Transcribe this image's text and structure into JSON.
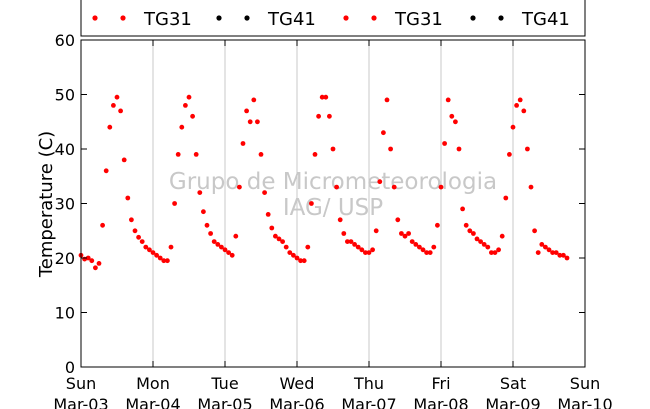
{
  "chart_data": {
    "type": "scatter",
    "ylabel": "Temperature (C)",
    "ylim": [
      0,
      60
    ],
    "yticks": [
      0,
      10,
      20,
      30,
      40,
      50,
      60
    ],
    "xlim": [
      0,
      7
    ],
    "xticks": [
      {
        "day": "Sun",
        "date": "Mar-03"
      },
      {
        "day": "Mon",
        "date": "Mar-04"
      },
      {
        "day": "Tue",
        "date": "Mar-05"
      },
      {
        "day": "Wed",
        "date": "Mar-06"
      },
      {
        "day": "Thu",
        "date": "Mar-07"
      },
      {
        "day": "Fri",
        "date": "Mar-08"
      },
      {
        "day": "Sat",
        "date": "Mar-09"
      },
      {
        "day": "Sun",
        "date": "Mar-10"
      }
    ],
    "grid": "vertical",
    "legend_position": "top",
    "legend": [
      {
        "name": "TG31",
        "color": "#ff0000"
      },
      {
        "name": "TG41",
        "color": "#000000"
      },
      {
        "name": "TG31",
        "color": "#ff0000"
      },
      {
        "name": "TG41",
        "color": "#000000"
      }
    ],
    "watermark": [
      "Grupo de Micrometeorologia",
      "IAG/ USP"
    ],
    "series": [
      {
        "name": "TG31",
        "color": "#ff0000",
        "points": [
          [
            0.0,
            20.5
          ],
          [
            0.05,
            19.8
          ],
          [
            0.1,
            20.0
          ],
          [
            0.15,
            19.5
          ],
          [
            0.2,
            18.2
          ],
          [
            0.25,
            19.0
          ],
          [
            0.3,
            26.0
          ],
          [
            0.35,
            36.0
          ],
          [
            0.4,
            44.0
          ],
          [
            0.45,
            48.0
          ],
          [
            0.5,
            49.5
          ],
          [
            0.55,
            47.0
          ],
          [
            0.6,
            38.0
          ],
          [
            0.65,
            31.0
          ],
          [
            0.7,
            27.0
          ],
          [
            0.75,
            25.0
          ],
          [
            0.8,
            23.8
          ],
          [
            0.85,
            23.0
          ],
          [
            0.9,
            22.0
          ],
          [
            0.95,
            21.5
          ],
          [
            1.0,
            21.0
          ],
          [
            1.05,
            20.5
          ],
          [
            1.1,
            20.0
          ],
          [
            1.15,
            19.5
          ],
          [
            1.2,
            19.5
          ],
          [
            1.25,
            22.0
          ],
          [
            1.3,
            30.0
          ],
          [
            1.35,
            39.0
          ],
          [
            1.4,
            44.0
          ],
          [
            1.45,
            48.0
          ],
          [
            1.5,
            49.5
          ],
          [
            1.55,
            46.0
          ],
          [
            1.6,
            39.0
          ],
          [
            1.65,
            32.0
          ],
          [
            1.7,
            28.5
          ],
          [
            1.75,
            26.0
          ],
          [
            1.8,
            24.5
          ],
          [
            1.85,
            23.0
          ],
          [
            1.9,
            22.5
          ],
          [
            1.95,
            22.0
          ],
          [
            2.0,
            21.5
          ],
          [
            2.05,
            21.0
          ],
          [
            2.1,
            20.5
          ],
          [
            2.15,
            24.0
          ],
          [
            2.2,
            33.0
          ],
          [
            2.25,
            41.0
          ],
          [
            2.3,
            47.0
          ],
          [
            2.35,
            45.0
          ],
          [
            2.4,
            49.0
          ],
          [
            2.45,
            45.0
          ],
          [
            2.5,
            39.0
          ],
          [
            2.55,
            32.0
          ],
          [
            2.6,
            28.0
          ],
          [
            2.65,
            25.5
          ],
          [
            2.7,
            24.0
          ],
          [
            2.75,
            23.5
          ],
          [
            2.8,
            23.0
          ],
          [
            2.85,
            22.0
          ],
          [
            2.9,
            21.0
          ],
          [
            2.95,
            20.5
          ],
          [
            3.0,
            20.0
          ],
          [
            3.05,
            19.5
          ],
          [
            3.1,
            19.5
          ],
          [
            3.15,
            22.0
          ],
          [
            3.2,
            30.0
          ],
          [
            3.25,
            39.0
          ],
          [
            3.3,
            46.0
          ],
          [
            3.35,
            49.5
          ],
          [
            3.4,
            49.5
          ],
          [
            3.45,
            46.0
          ],
          [
            3.5,
            40.0
          ],
          [
            3.55,
            33.0
          ],
          [
            3.6,
            27.0
          ],
          [
            3.65,
            24.5
          ],
          [
            3.7,
            23.0
          ],
          [
            3.75,
            23.0
          ],
          [
            3.8,
            22.5
          ],
          [
            3.85,
            22.0
          ],
          [
            3.9,
            21.5
          ],
          [
            3.95,
            21.0
          ],
          [
            4.0,
            21.0
          ],
          [
            4.05,
            21.5
          ],
          [
            4.1,
            25.0
          ],
          [
            4.15,
            34.0
          ],
          [
            4.2,
            43.0
          ],
          [
            4.25,
            49.0
          ],
          [
            4.3,
            40.0
          ],
          [
            4.35,
            33.0
          ],
          [
            4.4,
            27.0
          ],
          [
            4.45,
            24.5
          ],
          [
            4.5,
            24.0
          ],
          [
            4.55,
            24.5
          ],
          [
            4.6,
            23.0
          ],
          [
            4.65,
            22.5
          ],
          [
            4.7,
            22.0
          ],
          [
            4.75,
            21.5
          ],
          [
            4.8,
            21.0
          ],
          [
            4.85,
            21.0
          ],
          [
            4.9,
            22.0
          ],
          [
            4.95,
            26.0
          ],
          [
            5.0,
            33.0
          ],
          [
            5.05,
            41.0
          ],
          [
            5.1,
            49.0
          ],
          [
            5.15,
            46.0
          ],
          [
            5.2,
            45.0
          ],
          [
            5.25,
            40.0
          ],
          [
            5.3,
            29.0
          ],
          [
            5.35,
            26.0
          ],
          [
            5.4,
            25.0
          ],
          [
            5.45,
            24.5
          ],
          [
            5.5,
            23.5
          ],
          [
            5.55,
            23.0
          ],
          [
            5.6,
            22.5
          ],
          [
            5.65,
            22.0
          ],
          [
            5.7,
            21.0
          ],
          [
            5.75,
            21.0
          ],
          [
            5.8,
            21.5
          ],
          [
            5.85,
            24.0
          ],
          [
            5.9,
            31.0
          ],
          [
            5.95,
            39.0
          ],
          [
            6.0,
            44.0
          ],
          [
            6.05,
            48.0
          ],
          [
            6.1,
            49.0
          ],
          [
            6.15,
            47.0
          ],
          [
            6.2,
            40.0
          ],
          [
            6.25,
            33.0
          ],
          [
            6.3,
            25.0
          ],
          [
            6.35,
            21.0
          ],
          [
            6.4,
            22.5
          ],
          [
            6.45,
            22.0
          ],
          [
            6.5,
            21.5
          ],
          [
            6.55,
            21.0
          ],
          [
            6.6,
            21.0
          ],
          [
            6.65,
            20.5
          ],
          [
            6.7,
            20.5
          ],
          [
            6.75,
            20.0
          ]
        ]
      }
    ]
  }
}
